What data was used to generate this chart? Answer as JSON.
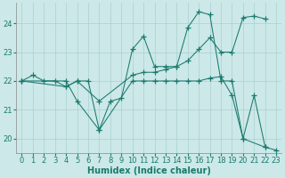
{
  "xlabel": "Humidex (Indice chaleur)",
  "bg_color": "#cce8e8",
  "line_color": "#1a7a6e",
  "grid_color": "#aad0d0",
  "xlim": [
    -0.5,
    23.5
  ],
  "ylim": [
    19.5,
    24.7
  ],
  "yticks": [
    20,
    21,
    22,
    23,
    24
  ],
  "xticks": [
    0,
    1,
    2,
    3,
    4,
    5,
    6,
    7,
    8,
    9,
    10,
    11,
    12,
    13,
    14,
    15,
    16,
    17,
    18,
    19,
    20,
    21,
    22,
    23
  ],
  "s1x": [
    0,
    1,
    2,
    3,
    4,
    5,
    6,
    7,
    8,
    9,
    10,
    11,
    12,
    13,
    14,
    15,
    16,
    17,
    18,
    19,
    20,
    21,
    22
  ],
  "s1y": [
    22.0,
    22.2,
    22.0,
    22.0,
    21.8,
    22.0,
    22.0,
    20.3,
    21.3,
    21.4,
    23.1,
    23.55,
    22.5,
    22.5,
    22.5,
    23.85,
    24.4,
    24.3,
    22.0,
    22.0,
    20.0,
    21.5,
    19.7
  ],
  "s2x": [
    0,
    4,
    5,
    7,
    10,
    11,
    12,
    13,
    14,
    15,
    16,
    17,
    18,
    19,
    20,
    21,
    22
  ],
  "s2y": [
    22.0,
    21.8,
    22.0,
    21.3,
    22.2,
    22.3,
    22.3,
    22.4,
    22.5,
    22.7,
    23.1,
    23.5,
    23.0,
    23.0,
    24.2,
    24.25,
    24.15
  ],
  "s3x": [
    0,
    4,
    5,
    7,
    10,
    11,
    12,
    13,
    14,
    15,
    16,
    17,
    18,
    19,
    20,
    22,
    23
  ],
  "s3y": [
    22.0,
    22.0,
    21.3,
    20.3,
    22.0,
    22.0,
    22.0,
    22.0,
    22.0,
    22.0,
    22.0,
    22.1,
    22.15,
    21.5,
    20.0,
    19.7,
    19.6
  ]
}
